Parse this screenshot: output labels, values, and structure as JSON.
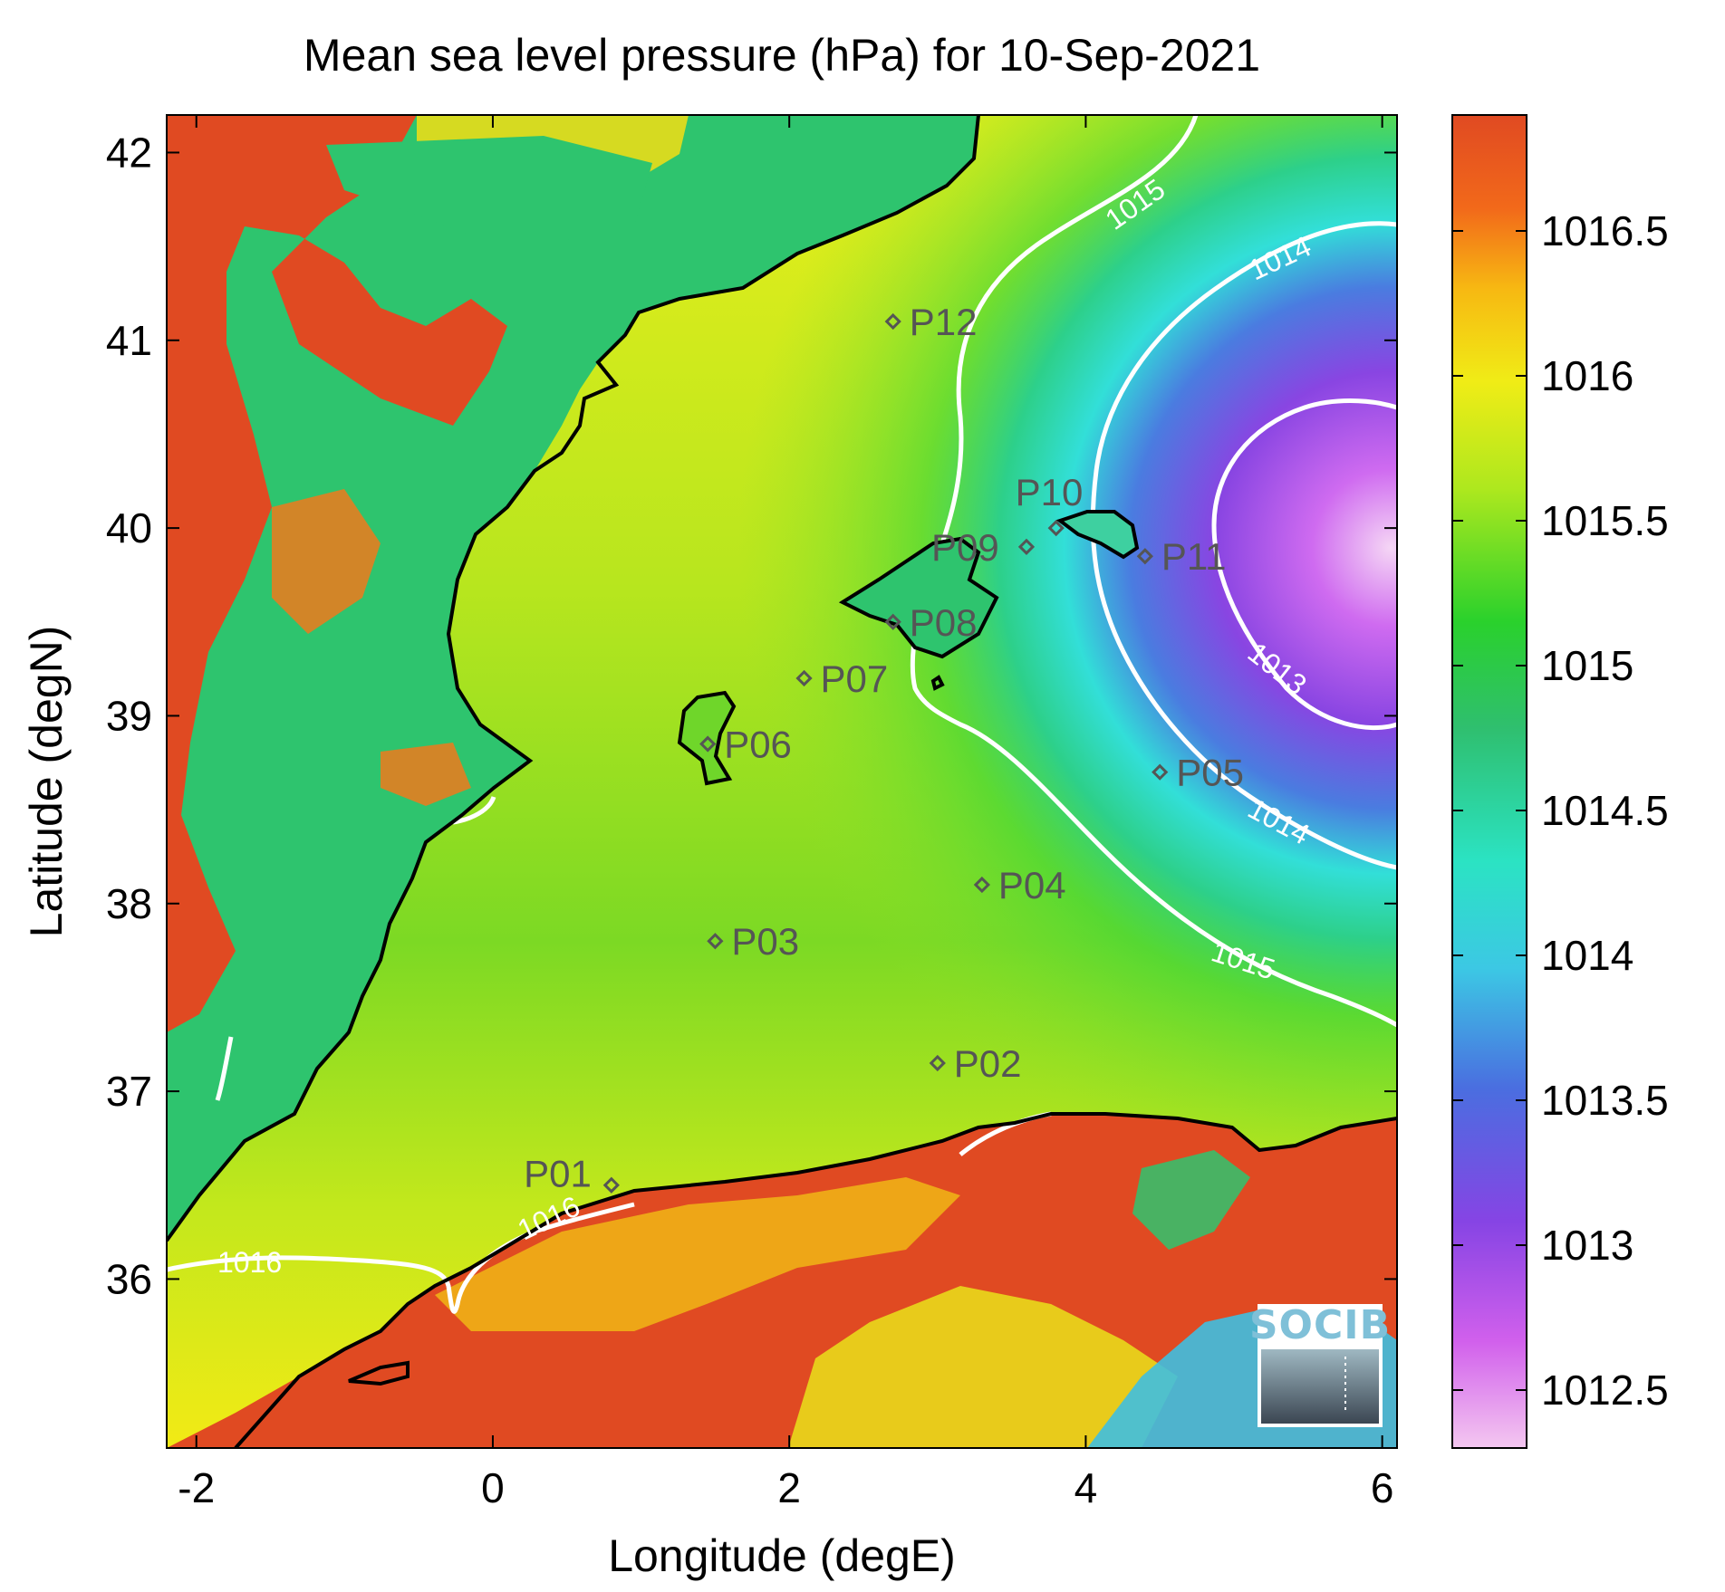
{
  "title": "Mean sea level pressure (hPa) for 10-Sep-2021",
  "xlabel": "Longitude (degE)",
  "ylabel": "Latitude (degN)",
  "xticks": [
    "-2",
    "0",
    "2",
    "4",
    "6"
  ],
  "yticks": [
    "36",
    "37",
    "38",
    "39",
    "40",
    "41",
    "42"
  ],
  "colorbar_ticks": [
    "1016.5",
    "1016",
    "1015.5",
    "1015",
    "1014.5",
    "1014",
    "1013.5",
    "1013",
    "1012.5"
  ],
  "logo_text": "SOCIB",
  "contours": {
    "c1015_north": "1015",
    "c1014_north": "1014",
    "c1013": "1013",
    "c1014_south": "1014",
    "c1015_south": "1015",
    "c1016": "1016",
    "c1016_b": "1016"
  },
  "stations": [
    {
      "name": "P01",
      "lon": 0.8,
      "lat": 36.5
    },
    {
      "name": "P02",
      "lon": 3.0,
      "lat": 37.15
    },
    {
      "name": "P03",
      "lon": 1.5,
      "lat": 37.8
    },
    {
      "name": "P04",
      "lon": 3.3,
      "lat": 38.1
    },
    {
      "name": "P05",
      "lon": 4.5,
      "lat": 38.7
    },
    {
      "name": "P06",
      "lon": 1.45,
      "lat": 38.85
    },
    {
      "name": "P07",
      "lon": 2.1,
      "lat": 39.2
    },
    {
      "name": "P08",
      "lon": 2.7,
      "lat": 39.5
    },
    {
      "name": "P09",
      "lon": 3.6,
      "lat": 39.9
    },
    {
      "name": "P10",
      "lon": 3.8,
      "lat": 40.0
    },
    {
      "name": "P11",
      "lon": 4.4,
      "lat": 39.85
    },
    {
      "name": "P12",
      "lon": 2.7,
      "lat": 41.1
    }
  ],
  "chart_data": {
    "type": "heatmap",
    "title": "Mean sea level pressure (hPa) for 10-Sep-2021",
    "xlabel": "Longitude (degE)",
    "ylabel": "Latitude (degN)",
    "xlim": [
      -2.2,
      6.1
    ],
    "ylim": [
      35.1,
      42.2
    ],
    "colorbar_range": [
      1012.3,
      1016.9
    ],
    "colorbar_ticks": [
      1012.5,
      1013,
      1013.5,
      1014,
      1014.5,
      1015,
      1015.5,
      1016,
      1016.5
    ],
    "contour_levels": [
      1013,
      1014,
      1015,
      1016
    ],
    "low_pressure_center": {
      "lon": 6.0,
      "lat": 39.8,
      "value": 1012.4
    },
    "stations": [
      "P01",
      "P02",
      "P03",
      "P04",
      "P05",
      "P06",
      "P07",
      "P08",
      "P09",
      "P10",
      "P11",
      "P12"
    ]
  }
}
